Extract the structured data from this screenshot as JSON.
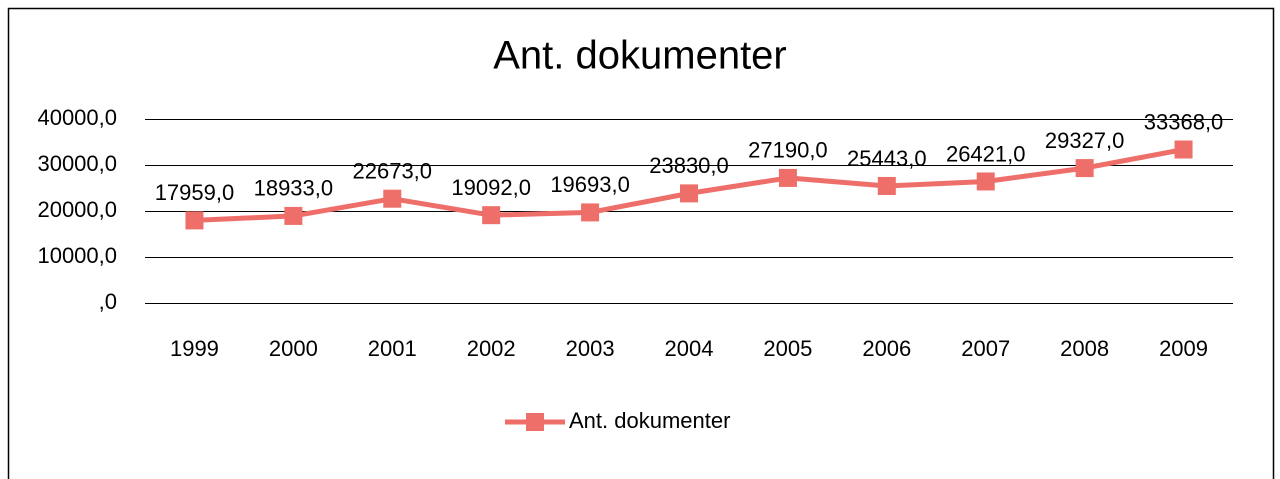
{
  "chart_data": {
    "type": "line",
    "title": "Ant. dokumenter",
    "categories": [
      "1999",
      "2000",
      "2001",
      "2002",
      "2003",
      "2004",
      "2005",
      "2006",
      "2007",
      "2008",
      "2009"
    ],
    "series": [
      {
        "name": "Ant. dokumenter",
        "color": "#ee6f6a",
        "values": [
          17959,
          18933,
          22673,
          19092,
          19693,
          23830,
          27190,
          25443,
          26421,
          29327,
          33368
        ],
        "value_labels": [
          "17959,0",
          "18933,0",
          "22673,0",
          "19092,0",
          "19693,0",
          "23830,0",
          "27190,0",
          "25443,0",
          "26421,0",
          "29327,0",
          "33368,0"
        ]
      }
    ],
    "ylim": [
      0,
      40000
    ],
    "yticks": [
      {
        "value": 0,
        "label": ",0"
      },
      {
        "value": 10000,
        "label": "10000,0"
      },
      {
        "value": 20000,
        "label": "20000,0"
      },
      {
        "value": 30000,
        "label": "30000,0"
      },
      {
        "value": 40000,
        "label": "40000,0"
      }
    ],
    "grid": true,
    "legend": "bottom"
  }
}
